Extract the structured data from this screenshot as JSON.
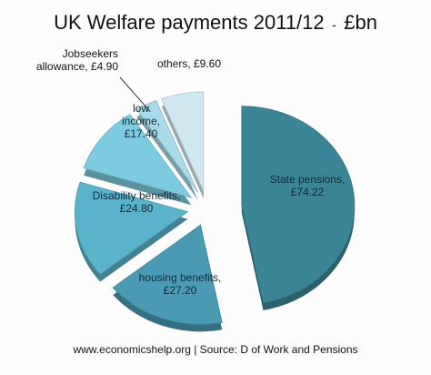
{
  "chart_data": {
    "type": "pie",
    "title": "UK Welfare payments 2011/12",
    "title_separator": "-",
    "title_unit": "£bn",
    "source": "www.economicshelp.org | Source: D of Work and Pensions",
    "exploded": true,
    "start_at": "12 o'clock",
    "direction": "clockwise",
    "slices": [
      {
        "label_lines": [
          "State pensions,",
          "£74.22"
        ],
        "value": 74.22,
        "color": "#3c8598"
      },
      {
        "label_lines": [
          "housing benefits,",
          "£27.20"
        ],
        "value": 27.2,
        "color": "#4a9ab4"
      },
      {
        "label_lines": [
          "Disability benefits,",
          "£24.80"
        ],
        "value": 24.8,
        "color": "#5ab3cb"
      },
      {
        "label_lines": [
          "low",
          "income,",
          "£17.40"
        ],
        "value": 17.4,
        "color": "#7ccbe0"
      },
      {
        "label_lines": [
          "Jobseekers",
          "allowance, £4.90"
        ],
        "value": 4.9,
        "color": "#a7dbe9"
      },
      {
        "label_lines": [
          "others, £9.60"
        ],
        "value": 9.6,
        "color": "#cfe7ef"
      }
    ]
  }
}
